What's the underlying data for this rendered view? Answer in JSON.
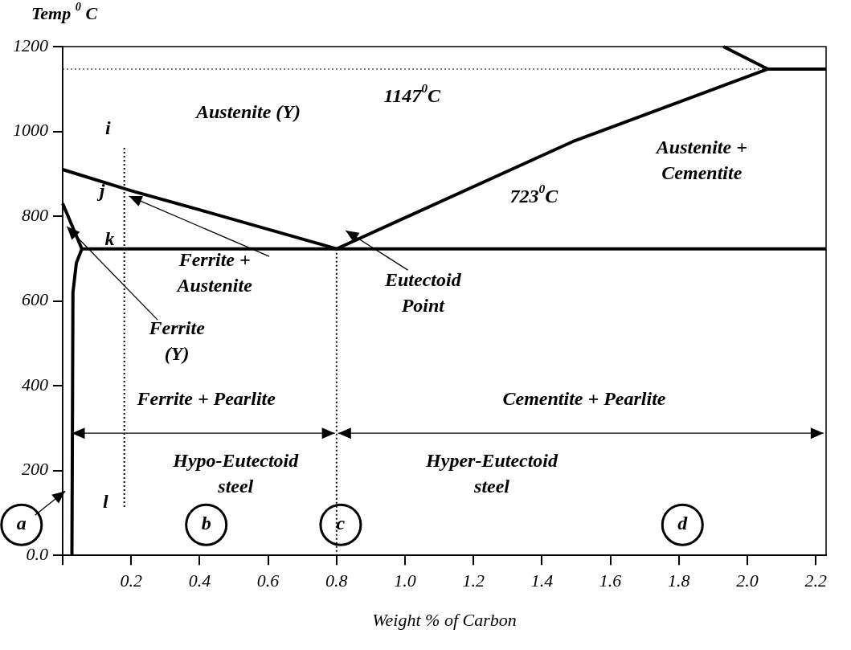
{
  "chart_data": {
    "type": "line",
    "xlabel": "Weight % of Carbon",
    "ylabel": "Temp $^{0}$ C",
    "xlim": [
      0,
      2.23
    ],
    "ylim": [
      0,
      1200
    ],
    "xticks": [
      {
        "value": 0,
        "label": null
      },
      0.2,
      0.4,
      0.6,
      0.8,
      {
        "value": 1.0,
        "label": "1.0"
      },
      1.2,
      1.4,
      1.6,
      1.8,
      {
        "value": 2.0,
        "label": "2.0"
      },
      2.2
    ],
    "yticks": [
      {
        "value": 0,
        "label": "0.0"
      },
      200,
      400,
      600,
      800,
      1000,
      1200
    ],
    "grid": false,
    "legend": false,
    "marker": "none",
    "series": [
      {
        "color": "#000000",
        "x": [
          0,
          0.2,
          0.4,
          0.8
        ],
        "values": [
          910,
          860,
          815,
          723
        ]
      },
      {
        "color": "#000000",
        "x": [
          0.8,
          1.49,
          2.06
        ],
        "values": [
          723,
          976,
          1147
        ]
      },
      {
        "color": "#000000",
        "x": [
          1.93,
          2.06,
          2.23
        ],
        "values": [
          1200,
          1147,
          1147
        ]
      },
      {
        "color": "#000000",
        "x": [
          0,
          0.056,
          2.23
        ],
        "values": [
          830,
          723,
          723
        ]
      },
      {
        "color": "#000000",
        "x": [
          0.056,
          0.04,
          0.03,
          0.027
        ],
        "values": [
          723,
          690,
          620,
          0
        ]
      },
      {
        "color": "#000000",
        "x": [
          0.8,
          0.8
        ],
        "values": [
          723,
          0
        ],
        "line_style": "dotted"
      },
      {
        "color": "#000000",
        "x": [
          0.18,
          0.18
        ],
        "values": [
          961,
          110
        ],
        "line_style": "dotted"
      }
    ],
    "ref_lines": [
      {
        "axis": "y",
        "value": 1147,
        "line_style": "dotted",
        "color": "#000000"
      }
    ],
    "annotations": [
      "Austenite (Y)",
      "1147$^{0}$C",
      "Austenite +\nCementite",
      "723$^{0}$C",
      "i",
      "j",
      "k",
      "l",
      "Ferrite +\nAustenite",
      "Eutectoid\nPoint",
      "Ferrite\n(Y)",
      "Ferrite + Pearlite",
      "Cementite + Pearlite",
      "Hypo-Eutectoid\nsteel",
      "Hyper-Eutectoid\nsteel",
      "a",
      "b",
      "c",
      "d"
    ]
  }
}
